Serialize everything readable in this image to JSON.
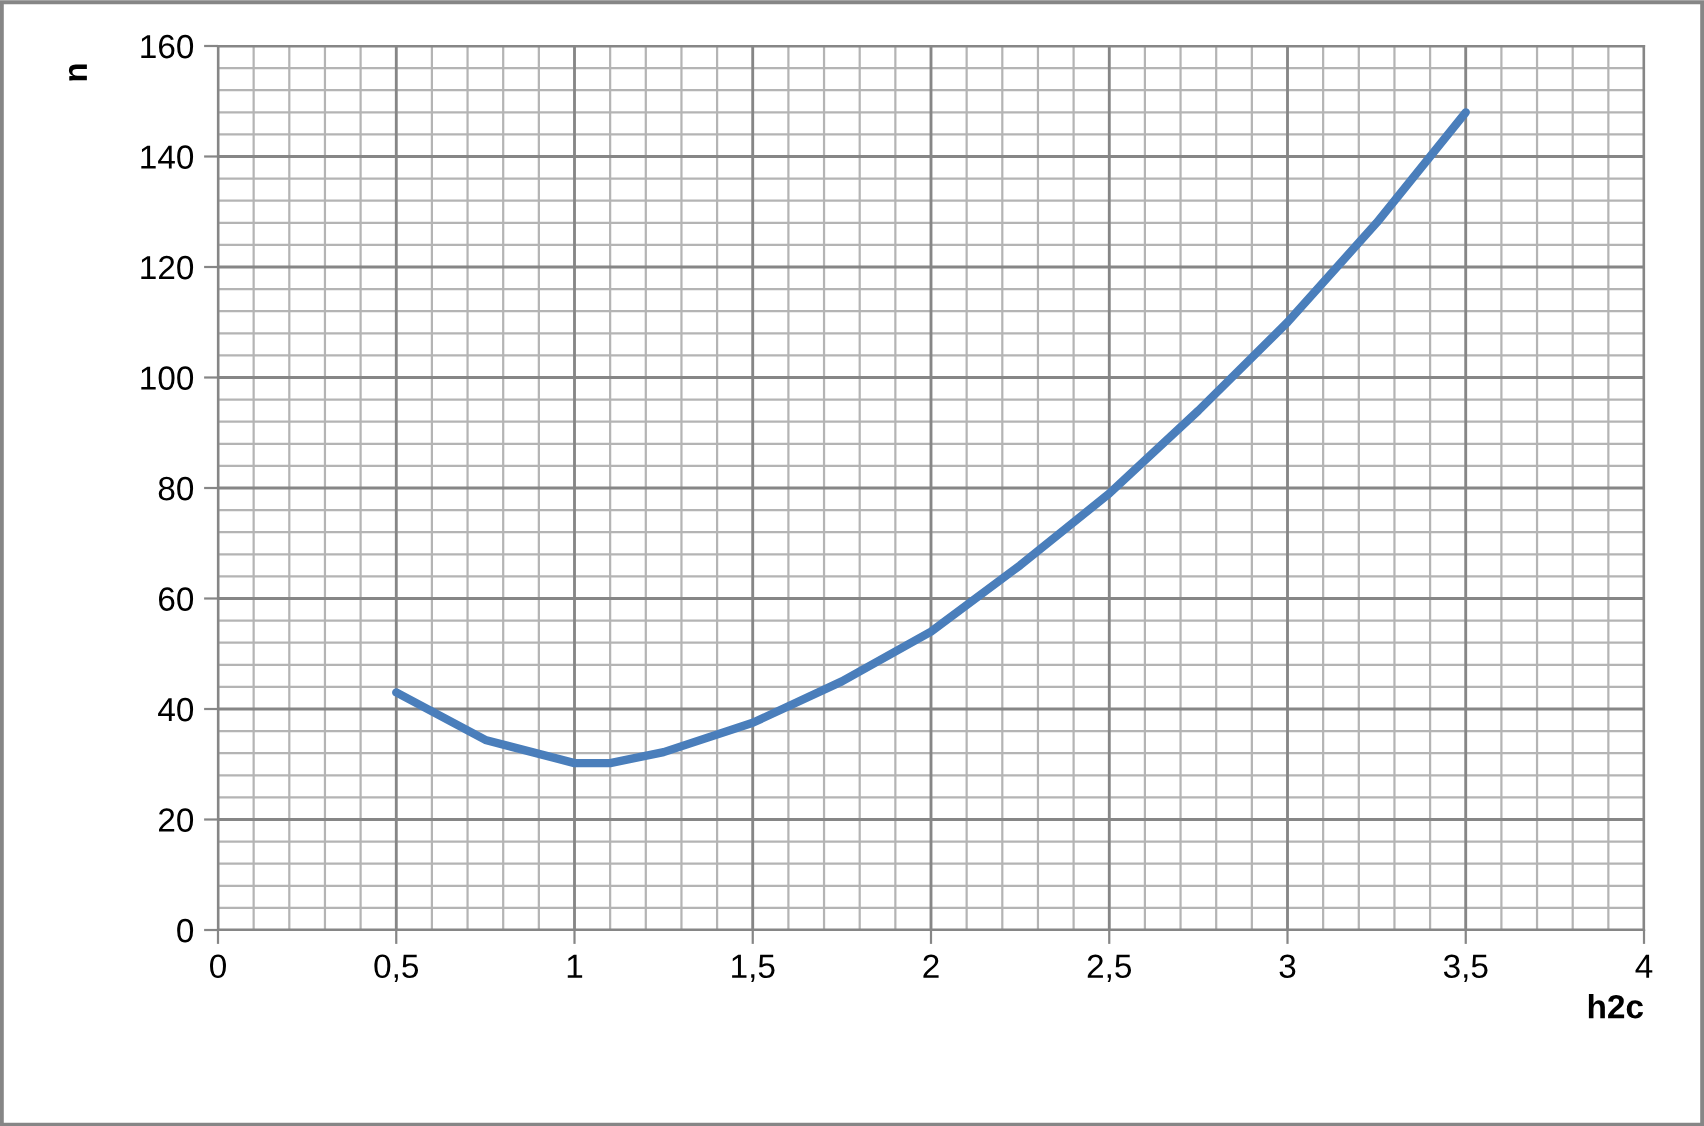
{
  "chart_data": {
    "type": "line",
    "xlabel": "h2c",
    "ylabel": "n",
    "x": [
      0.5,
      0.75,
      1.0,
      1.1,
      1.25,
      1.5,
      1.75,
      2.0,
      2.25,
      2.5,
      2.75,
      3.0,
      3.25,
      3.5
    ],
    "series": [
      {
        "color": "#4a7ebb",
        "values": [
          43,
          34.4,
          30.2,
          30.2,
          32.2,
          37.5,
          45,
          54,
          66,
          79,
          94,
          110,
          128,
          148
        ]
      }
    ],
    "xlim": [
      0,
      4
    ],
    "ylim": [
      0,
      160
    ],
    "xticks": [
      0,
      {
        "value": 0.5,
        "label": "0,5"
      },
      1,
      {
        "value": 1.5,
        "label": "1,5"
      },
      2,
      {
        "value": 2.5,
        "label": "2,5"
      },
      3,
      {
        "value": 3.5,
        "label": "3,5"
      },
      4
    ],
    "yticks": [
      0,
      20,
      40,
      60,
      80,
      100,
      120,
      140,
      160
    ],
    "grid": true,
    "marker": "none",
    "line_style": "solid"
  }
}
